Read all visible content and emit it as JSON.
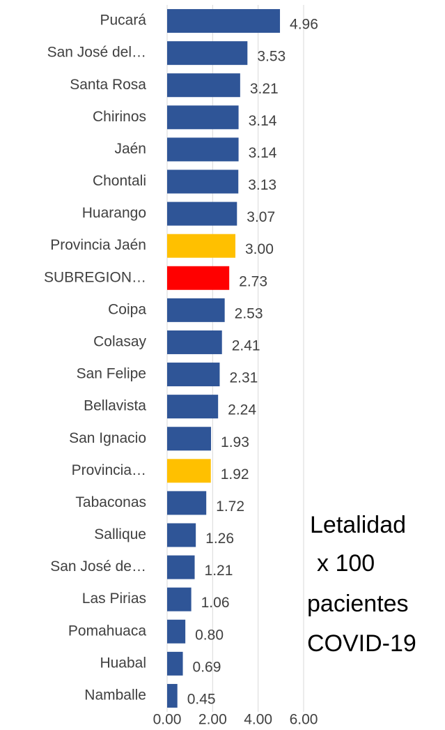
{
  "chart_data": {
    "type": "bar",
    "orientation": "horizontal",
    "categories": [
      "Pucará",
      "San José del…",
      "Santa Rosa",
      "Chirinos",
      "Jaén",
      "Chontali",
      "Huarango",
      "Provincia Jaén",
      "SUBREGION…",
      "Coipa",
      "Colasay",
      "San Felipe",
      "Bellavista",
      "San Ignacio",
      "Provincia…",
      "Tabaconas",
      "Sallique",
      "San José de…",
      "Las Pirias",
      "Pomahuaca",
      "Huabal",
      "Namballe"
    ],
    "values": [
      4.96,
      3.53,
      3.21,
      3.14,
      3.14,
      3.13,
      3.07,
      3.0,
      2.73,
      2.53,
      2.41,
      2.31,
      2.24,
      1.93,
      1.92,
      1.72,
      1.26,
      1.21,
      1.06,
      0.8,
      0.69,
      0.45
    ],
    "value_labels": [
      "4.96",
      "3.53",
      "3.21",
      "3.14",
      "3.14",
      "3.13",
      "3.07",
      "3.00",
      "2.73",
      "2.53",
      "2.41",
      "2.31",
      "2.24",
      "1.93",
      "1.92",
      "1.72",
      "1.26",
      "1.21",
      "1.06",
      "0.80",
      "0.69",
      "0.45"
    ],
    "colors": [
      "#2f5597",
      "#2f5597",
      "#2f5597",
      "#2f5597",
      "#2f5597",
      "#2f5597",
      "#2f5597",
      "#ffc000",
      "#ff0000",
      "#2f5597",
      "#2f5597",
      "#2f5597",
      "#2f5597",
      "#2f5597",
      "#ffc000",
      "#2f5597",
      "#2f5597",
      "#2f5597",
      "#2f5597",
      "#2f5597",
      "#2f5597",
      "#2f5597"
    ],
    "xlim": [
      0,
      6
    ],
    "xticks": [
      {
        "value": 0,
        "label": "0.00"
      },
      {
        "value": 2,
        "label": "2.00"
      },
      {
        "value": 4,
        "label": "4.00"
      },
      {
        "value": 6,
        "label": "6.00"
      }
    ],
    "grid": true,
    "annotation": [
      "Letalidad",
      "x 100",
      "pacientes",
      "COVID-19"
    ]
  }
}
